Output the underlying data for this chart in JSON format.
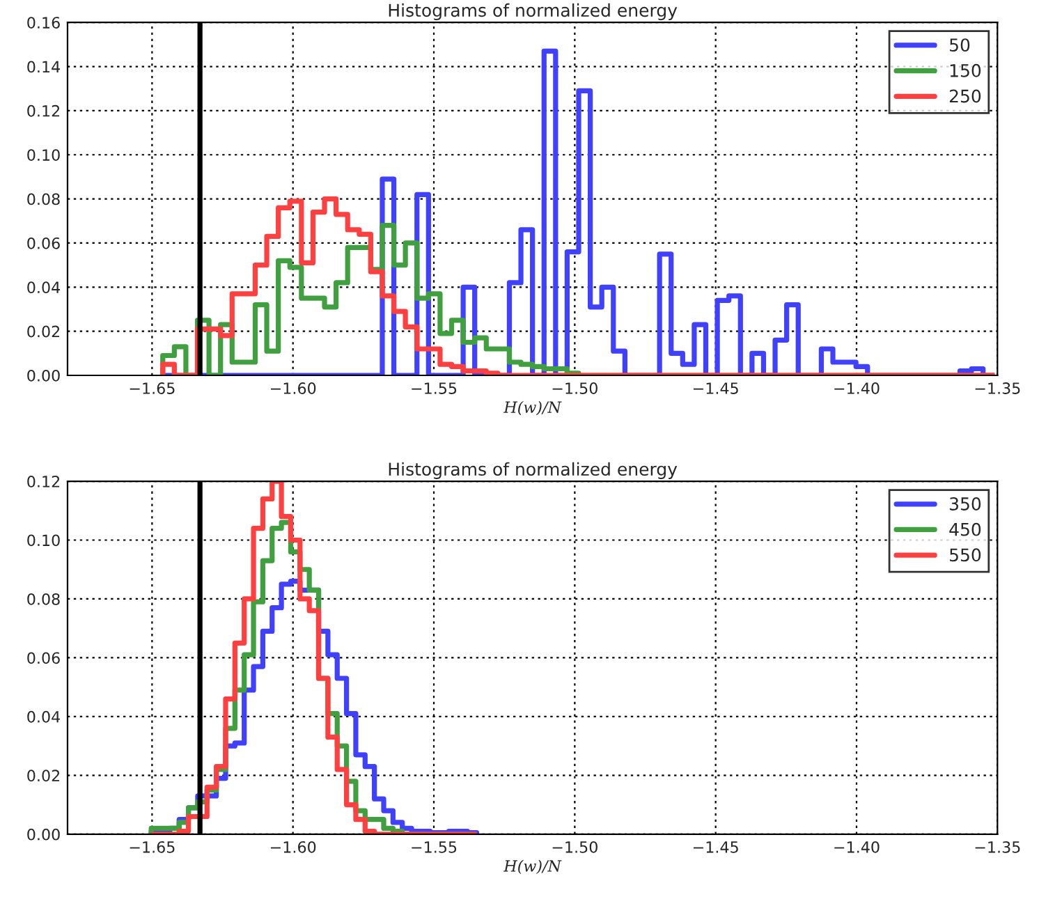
{
  "chart_data": [
    {
      "type": "histogram",
      "title": "Histograms of normalized energy",
      "xlabel": "H(w)/N",
      "xlim": [
        -1.68,
        -1.35
      ],
      "xticks": [
        {
          "value": -1.65,
          "label": "−1.65"
        },
        {
          "value": -1.6,
          "label": "−1.60"
        },
        {
          "value": -1.55,
          "label": "−1.55"
        },
        {
          "value": -1.5,
          "label": "−1.50"
        },
        {
          "value": -1.45,
          "label": "−1.45"
        },
        {
          "value": -1.4,
          "label": "−1.40"
        },
        {
          "value": -1.35,
          "label": "−1.35"
        }
      ],
      "ylim": [
        0,
        0.16
      ],
      "yticks": [
        {
          "value": 0,
          "label": "0.00"
        },
        {
          "value": 0.02,
          "label": "0.02"
        },
        {
          "value": 0.04,
          "label": "0.04"
        },
        {
          "value": 0.06,
          "label": "0.06"
        },
        {
          "value": 0.08,
          "label": "0.08"
        },
        {
          "value": 0.1,
          "label": "0.10"
        },
        {
          "value": 0.12,
          "label": "0.12"
        },
        {
          "value": 0.14,
          "label": "0.14"
        },
        {
          "value": 0.16,
          "label": "0.16"
        }
      ],
      "grid": true,
      "legend": "top right",
      "ref_lines": [
        {
          "axis": "x",
          "value": -1.633,
          "color": "#000000"
        }
      ],
      "bins": [
        -1.6462,
        -1.6421,
        -1.638,
        -1.6339,
        -1.6298,
        -1.6257,
        -1.6216,
        -1.6175,
        -1.6134,
        -1.6093,
        -1.6052,
        -1.6011,
        -1.597,
        -1.5929,
        -1.5888,
        -1.5847,
        -1.5806,
        -1.5765,
        -1.5724,
        -1.5683,
        -1.5642,
        -1.5601,
        -1.556,
        -1.5519,
        -1.5478,
        -1.5437,
        -1.5396,
        -1.5355,
        -1.5314,
        -1.5273,
        -1.5232,
        -1.5191,
        -1.515,
        -1.5109,
        -1.5068,
        -1.5027,
        -1.4986,
        -1.4945,
        -1.4904,
        -1.4863,
        -1.4822,
        -1.4781,
        -1.474,
        -1.4699,
        -1.4658,
        -1.4617,
        -1.4576,
        -1.4535,
        -1.4494,
        -1.4453,
        -1.4412,
        -1.4371,
        -1.433,
        -1.4289,
        -1.4248,
        -1.4207,
        -1.4166,
        -1.4125,
        -1.4084,
        -1.4043,
        -1.4002,
        -1.3961,
        -1.392,
        -1.3879,
        -1.3838,
        -1.3797,
        -1.3756,
        -1.3715,
        -1.3674,
        -1.3633,
        -1.3592,
        -1.3551,
        -1.351
      ],
      "series": [
        {
          "name": "50",
          "color": "#4040ff",
          "values": [
            0,
            0,
            0,
            0,
            0,
            0,
            0,
            0,
            0,
            0,
            0,
            0,
            0,
            0,
            0,
            0,
            0,
            0,
            0,
            0.089,
            0,
            0,
            0.082,
            0,
            0,
            0,
            0.04,
            0,
            0,
            0,
            0.042,
            0.066,
            0,
            0.147,
            0,
            0.056,
            0.129,
            0.031,
            0.04,
            0.011,
            0,
            0,
            0,
            0.055,
            0.01,
            0.005,
            0.023,
            0,
            0.034,
            0.036,
            0,
            0.01,
            0,
            0.016,
            0.032,
            0,
            0,
            0.012,
            0.006,
            0.006,
            0.004,
            0,
            0,
            0,
            0,
            0,
            0,
            0,
            0,
            0.002,
            0.003,
            0
          ]
        },
        {
          "name": "150",
          "color": "#40a040",
          "values": [
            0.009,
            0.013,
            0,
            0.025,
            0,
            0.023,
            0.006,
            0.006,
            0.032,
            0.011,
            0.052,
            0.049,
            0.035,
            0.035,
            0.031,
            0.042,
            0.058,
            0.058,
            0.048,
            0.068,
            0.05,
            0.06,
            0.035,
            0.037,
            0.019,
            0.025,
            0.015,
            0.017,
            0.012,
            0.012,
            0.006,
            0.005,
            0.004,
            0.003,
            0.003,
            0.001,
            0,
            0,
            0,
            0,
            0,
            0,
            0,
            0,
            0,
            0,
            0,
            0,
            0,
            0,
            0,
            0,
            0,
            0,
            0,
            0,
            0,
            0,
            0,
            0,
            0,
            0,
            0,
            0,
            0,
            0,
            0,
            0,
            0,
            0,
            0,
            0
          ]
        },
        {
          "name": "250",
          "color": "#ff4040",
          "values": [
            0.005,
            0,
            0,
            0.021,
            0.021,
            0.018,
            0.037,
            0.037,
            0.05,
            0.063,
            0.076,
            0.079,
            0.051,
            0.074,
            0.08,
            0.073,
            0.066,
            0.064,
            0.047,
            0.036,
            0.029,
            0.022,
            0.012,
            0.012,
            0.005,
            0.004,
            0.002,
            0.002,
            0.001,
            0,
            0,
            0,
            0,
            0,
            0,
            0,
            0,
            0,
            0,
            0,
            0,
            0,
            0,
            0,
            0,
            0,
            0,
            0,
            0,
            0,
            0,
            0,
            0,
            0,
            0,
            0,
            0,
            0,
            0,
            0,
            0,
            0,
            0,
            0,
            0,
            0,
            0,
            0,
            0,
            0,
            0,
            0
          ]
        }
      ]
    },
    {
      "type": "histogram",
      "title": "Histograms of normalized energy",
      "xlabel": "H(w)/N",
      "xlim": [
        -1.68,
        -1.35
      ],
      "xticks": [
        {
          "value": -1.65,
          "label": "−1.65"
        },
        {
          "value": -1.6,
          "label": "−1.60"
        },
        {
          "value": -1.55,
          "label": "−1.55"
        },
        {
          "value": -1.5,
          "label": "−1.50"
        },
        {
          "value": -1.45,
          "label": "−1.45"
        },
        {
          "value": -1.4,
          "label": "−1.40"
        },
        {
          "value": -1.35,
          "label": "−1.35"
        }
      ],
      "ylim": [
        0,
        0.12
      ],
      "yticks": [
        {
          "value": 0,
          "label": "0.00"
        },
        {
          "value": 0.02,
          "label": "0.02"
        },
        {
          "value": 0.04,
          "label": "0.04"
        },
        {
          "value": 0.06,
          "label": "0.06"
        },
        {
          "value": 0.08,
          "label": "0.08"
        },
        {
          "value": 0.1,
          "label": "0.10"
        },
        {
          "value": 0.12,
          "label": "0.12"
        }
      ],
      "grid": true,
      "legend": "top right",
      "ref_lines": [
        {
          "axis": "x",
          "value": -1.633,
          "color": "#000000"
        }
      ],
      "bins": [
        -1.6503,
        -1.647,
        -1.6437,
        -1.6404,
        -1.6371,
        -1.6338,
        -1.6305,
        -1.6272,
        -1.6239,
        -1.6206,
        -1.6173,
        -1.614,
        -1.6107,
        -1.6074,
        -1.6041,
        -1.6008,
        -1.5975,
        -1.5942,
        -1.5909,
        -1.5876,
        -1.5843,
        -1.581,
        -1.5777,
        -1.5744,
        -1.5711,
        -1.5678,
        -1.5645,
        -1.5612,
        -1.5579,
        -1.5546,
        -1.5513,
        -1.548,
        -1.5447,
        -1.5414,
        -1.5381,
        -1.5348
      ],
      "series": [
        {
          "name": "350",
          "color": "#4040ff",
          "values": [
            0.001,
            0.001,
            0.002,
            0.005,
            0.009,
            0.013,
            0.013,
            0.019,
            0.03,
            0.031,
            0.049,
            0.057,
            0.069,
            0.077,
            0.085,
            0.086,
            0.083,
            0.083,
            0.069,
            0.061,
            0.053,
            0.041,
            0.027,
            0.023,
            0.012,
            0.008,
            0.004,
            0.002,
            0.001,
            0.001,
            0.0005,
            0.0005,
            0.001,
            0.001,
            0.0005
          ]
        },
        {
          "name": "450",
          "color": "#40a040",
          "values": [
            0.002,
            0.002,
            0.002,
            0.004,
            0.009,
            0.011,
            0.015,
            0.022,
            0.036,
            0.049,
            0.061,
            0.079,
            0.093,
            0.104,
            0.106,
            0.096,
            0.09,
            0.083,
            0.053,
            0.041,
            0.03,
            0.018,
            0.008,
            0.005,
            0.005,
            0.002,
            0.001,
            0,
            0,
            0,
            0,
            0,
            0,
            0,
            0
          ]
        },
        {
          "name": "550",
          "color": "#ff4040",
          "values": [
            0,
            0,
            0,
            0.001,
            0.006,
            0.006,
            0.016,
            0.023,
            0.046,
            0.065,
            0.08,
            0.104,
            0.114,
            0.12,
            0.108,
            0.1,
            0.08,
            0.076,
            0.053,
            0.033,
            0.022,
            0.01,
            0.005,
            0.001,
            0,
            0,
            0,
            0,
            0,
            0,
            0,
            0,
            0,
            0,
            0
          ]
        }
      ]
    }
  ]
}
